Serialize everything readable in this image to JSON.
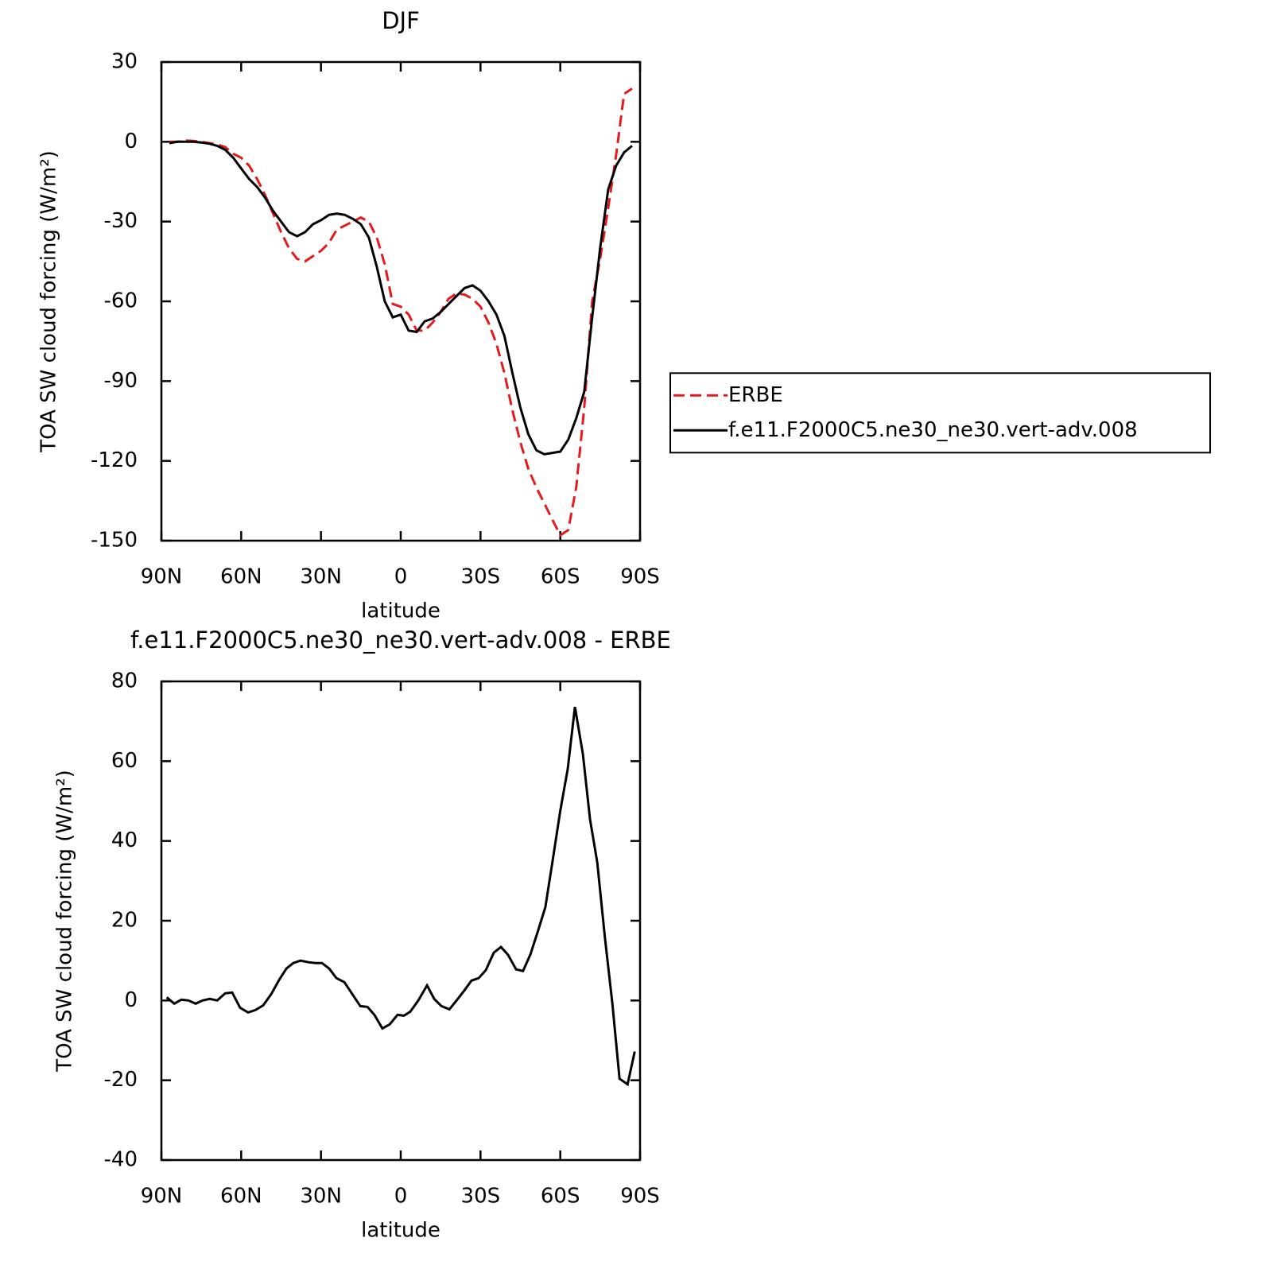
{
  "chart_data": [
    {
      "type": "line",
      "title": "DJF",
      "xlabel": "latitude",
      "ylabel": "TOA SW cloud forcing (W/m²)",
      "xlim": [
        90,
        -90
      ],
      "xticks": [
        {
          "value": 90,
          "label": "90N"
        },
        {
          "value": 60,
          "label": "60N"
        },
        {
          "value": 30,
          "label": "30N"
        },
        0,
        {
          "value": -30,
          "label": "30S"
        },
        {
          "value": -60,
          "label": "60S"
        },
        {
          "value": -90,
          "label": "90S"
        }
      ],
      "ylim": [
        -150,
        30
      ],
      "yticks": [
        30,
        0,
        -30,
        -60,
        -90,
        -120,
        -150
      ],
      "legend": "right",
      "x": [
        87,
        84,
        81,
        78,
        75,
        72,
        69,
        66,
        63,
        60,
        57,
        54,
        51,
        48,
        45,
        42,
        39,
        36,
        33,
        30,
        27,
        24,
        21,
        18,
        15,
        12,
        9,
        6,
        3,
        0,
        -3,
        -6,
        -9,
        -12,
        -15,
        -18,
        -21,
        -24,
        -27,
        -30,
        -33,
        -36,
        -39,
        -42,
        -45,
        -48,
        -51,
        -54,
        -57,
        -60,
        -63,
        -66,
        -69,
        -72,
        -75,
        -78,
        -81,
        -84,
        -87
      ],
      "series": [
        {
          "name": "ERBE",
          "color": "#e41a1c",
          "linestyle": "dashed",
          "values": [
            0,
            0,
            0.5,
            0.3,
            0,
            -0.5,
            -1,
            -2,
            -4.5,
            -6,
            -9,
            -14,
            -20,
            -27,
            -34,
            -40,
            -44,
            -45,
            -43,
            -41,
            -38,
            -33,
            -31.5,
            -30,
            -28.5,
            -30,
            -36,
            -46,
            -61,
            -62,
            -65,
            -71,
            -71,
            -68,
            -64,
            -59,
            -57,
            -57.5,
            -59,
            -62,
            -68,
            -76,
            -87,
            -101,
            -113,
            -123,
            -130,
            -136,
            -142,
            -148,
            -146,
            -130,
            -100,
            -60,
            -44,
            -25,
            -5,
            18,
            20
          ]
        },
        {
          "name": "f.e11.F2000C5.ne30_ne30.vert-adv.008",
          "color": "#000000",
          "linestyle": "solid",
          "values": [
            -0.5,
            0,
            0,
            0,
            -0.3,
            -0.7,
            -1.5,
            -3,
            -6,
            -10,
            -14,
            -17,
            -21,
            -26,
            -30,
            -34,
            -35.5,
            -34,
            -31,
            -29.5,
            -27.5,
            -27,
            -27.5,
            -29,
            -31,
            -36,
            -47,
            -60,
            -66,
            -65,
            -71,
            -71.5,
            -67.5,
            -66.5,
            -64,
            -61,
            -58,
            -55,
            -54,
            -56,
            -60,
            -65,
            -73,
            -87,
            -100,
            -110,
            -116,
            -117.5,
            -117,
            -116.5,
            -112,
            -104,
            -94,
            -66,
            -40,
            -18,
            -9,
            -4,
            -1.5
          ]
        }
      ]
    },
    {
      "type": "line",
      "title": "f.e11.F2000C5.ne30_ne30.vert-adv.008 - ERBE",
      "xlabel": "latitude",
      "ylabel": "TOA SW cloud forcing (W/m²)",
      "xlim": [
        90,
        -90
      ],
      "xticks": [
        {
          "value": 90,
          "label": "90N"
        },
        {
          "value": 60,
          "label": "60N"
        },
        {
          "value": 30,
          "label": "30N"
        },
        0,
        {
          "value": -30,
          "label": "30S"
        },
        {
          "value": -60,
          "label": "60S"
        },
        {
          "value": -90,
          "label": "90S"
        }
      ],
      "ylim": [
        -40,
        80
      ],
      "yticks": [
        80,
        60,
        40,
        20,
        0,
        -20,
        -40
      ],
      "x": [
        88,
        85.2,
        82.5,
        79.8,
        77.1,
        74.5,
        71.8,
        69,
        66,
        63.4,
        60.4,
        57.4,
        54.7,
        51.7,
        48.7,
        45.7,
        43,
        40.4,
        37.7,
        34.7,
        32,
        29.6,
        26.9,
        24.2,
        21.2,
        18.2,
        15.2,
        12.5,
        9.9,
        6.9,
        4.2,
        1.2,
        -1.2,
        -3.6,
        -6.6,
        -9.9,
        -12.6,
        -15.3,
        -18.3,
        -21,
        -24,
        -26.6,
        -29.3,
        -32,
        -35,
        -37.7,
        -40.4,
        -43.4,
        -46,
        -48.8,
        -51.7,
        -54.4,
        -57.1,
        -60,
        -62.8,
        -65.5,
        -68.5,
        -71.2,
        -73.9,
        -76.8,
        -79.6,
        -82.3,
        -85.3,
        -88
      ],
      "series": [
        {
          "name": "f.e11.F2000C5.ne30_ne30.vert-adv.008 - ERBE",
          "color": "#000000",
          "linestyle": "solid",
          "values": [
            0.8,
            -0.8,
            0.2,
            0,
            -0.8,
            0,
            0.4,
            0,
            1.8,
            2,
            -1.8,
            -3,
            -2.4,
            -1.2,
            1.6,
            5.2,
            8,
            9.4,
            10,
            9.6,
            9.4,
            9.4,
            8,
            5.6,
            4.6,
            1.6,
            -1.4,
            -1.6,
            -3.6,
            -7,
            -6,
            -3.6,
            -3.8,
            -2.8,
            0,
            3.8,
            0.4,
            -1.4,
            -2.2,
            0,
            2.6,
            5,
            5.6,
            7.6,
            12,
            13.4,
            11.4,
            7.8,
            7.4,
            11.6,
            17.6,
            23.4,
            35,
            47.6,
            58,
            73.6,
            61.8,
            45.4,
            34.6,
            15.6,
            -0.8,
            -19.6,
            -21,
            -12.8
          ]
        }
      ]
    }
  ]
}
